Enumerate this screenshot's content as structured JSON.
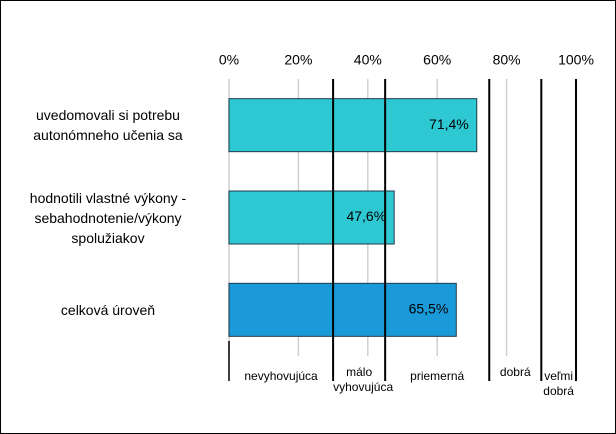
{
  "chart_data": {
    "type": "bar",
    "orientation": "horizontal",
    "categories": [
      "uvedomovali si potrebu autonómneho učenia sa",
      "hodnotili vlastné výkony - sebahodnotenie/výkony spolužiakov",
      "celková úroveň"
    ],
    "values": [
      71.4,
      47.6,
      65.5
    ],
    "value_labels": [
      "71,4%",
      "47,6%",
      "65,5%"
    ],
    "colors": [
      "#2ec8d2",
      "#2ec8d2",
      "#1a9ad8"
    ],
    "xlim": [
      0,
      100
    ],
    "xticks": [
      {
        "value": 0,
        "label": "0%"
      },
      {
        "value": 20,
        "label": "20%"
      },
      {
        "value": 40,
        "label": "40%"
      },
      {
        "value": 60,
        "label": "60%"
      },
      {
        "value": 80,
        "label": "80%"
      },
      {
        "value": 100,
        "label": "100%"
      }
    ],
    "grid": true,
    "bands": [
      {
        "label": "nevyhovujúca",
        "from": 0,
        "to": 30
      },
      {
        "label": "málo vyhovujúca",
        "from": 30,
        "to": 45
      },
      {
        "label": "priemerná",
        "from": 45,
        "to": 75
      },
      {
        "label": "dobrá",
        "from": 75,
        "to": 90
      },
      {
        "label": "veľmi dobrá",
        "from": 90,
        "to": 100
      }
    ]
  }
}
